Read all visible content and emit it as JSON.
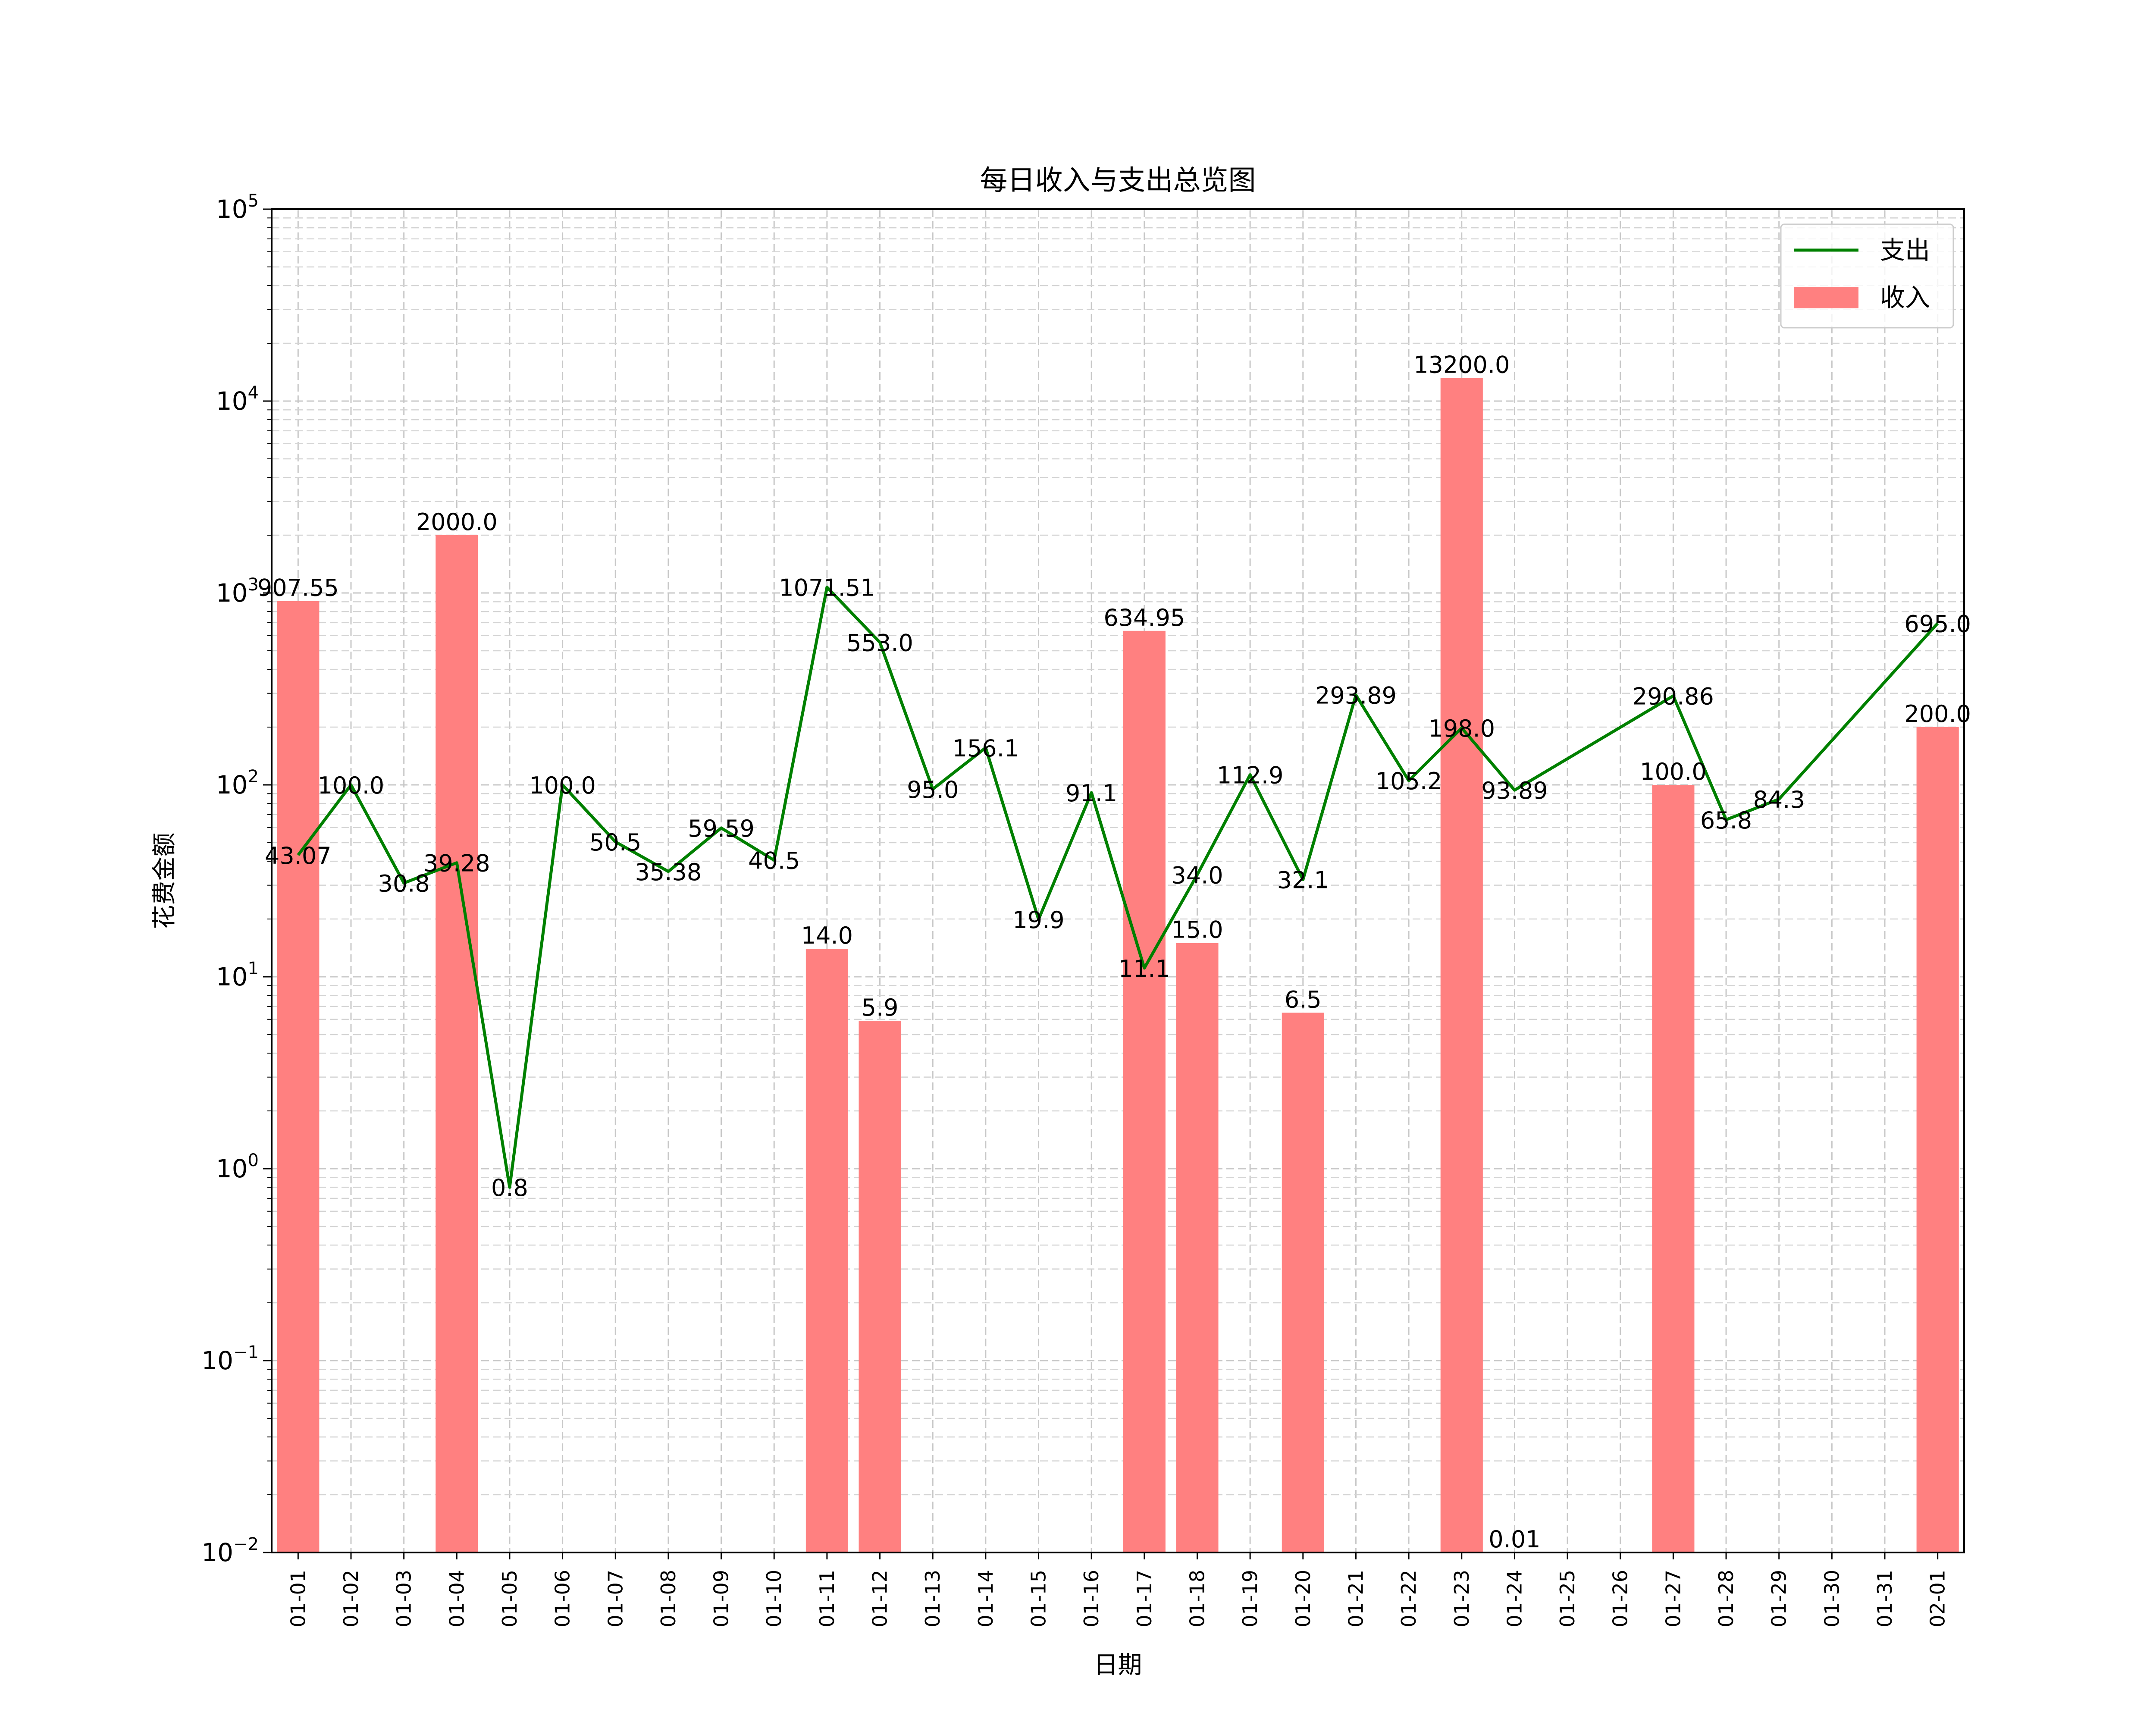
{
  "chart_data": {
    "type": "bar",
    "title": "每日收入与支出总览图",
    "xlabel": "日期",
    "ylabel": "花费金额",
    "yscale": "log",
    "ylim": [
      0.01,
      100000
    ],
    "grid": true,
    "legend_position": "top-right",
    "categories": [
      "01-01",
      "01-02",
      "01-03",
      "01-04",
      "01-05",
      "01-06",
      "01-07",
      "01-08",
      "01-09",
      "01-10",
      "01-11",
      "01-12",
      "01-13",
      "01-14",
      "01-15",
      "01-16",
      "01-17",
      "01-18",
      "01-19",
      "01-20",
      "01-21",
      "01-22",
      "01-23",
      "01-24",
      "01-25",
      "01-26",
      "01-27",
      "01-28",
      "01-29",
      "01-30",
      "01-31",
      "02-01"
    ],
    "y_ticks": [
      {
        "base": "10",
        "exp": "−2"
      },
      {
        "base": "10",
        "exp": "−1"
      },
      {
        "base": "10",
        "exp": "0"
      },
      {
        "base": "10",
        "exp": "1"
      },
      {
        "base": "10",
        "exp": "2"
      },
      {
        "base": "10",
        "exp": "3"
      },
      {
        "base": "10",
        "exp": "4"
      },
      {
        "base": "10",
        "exp": "5"
      }
    ],
    "series": [
      {
        "name": "支出",
        "kind": "line",
        "color": "#008000",
        "points": [
          {
            "x": "01-01",
            "y": 43.07,
            "label": "43.07"
          },
          {
            "x": "01-02",
            "y": 100.0,
            "label": "100.0"
          },
          {
            "x": "01-03",
            "y": 30.8,
            "label": "30.8"
          },
          {
            "x": "01-04",
            "y": 39.28,
            "label": "39.28"
          },
          {
            "x": "01-05",
            "y": 0.8,
            "label": "0.8"
          },
          {
            "x": "01-06",
            "y": 100.0,
            "label": "100.0"
          },
          {
            "x": "01-07",
            "y": 50.5,
            "label": "50.5"
          },
          {
            "x": "01-08",
            "y": 35.38,
            "label": "35.38"
          },
          {
            "x": "01-09",
            "y": 59.59,
            "label": "59.59"
          },
          {
            "x": "01-10",
            "y": 40.5,
            "label": "40.5"
          },
          {
            "x": "01-11",
            "y": 1071.51,
            "label": "1071.51"
          },
          {
            "x": "01-12",
            "y": 553.0,
            "label": "553.0"
          },
          {
            "x": "01-13",
            "y": 95.0,
            "label": "95.0"
          },
          {
            "x": "01-14",
            "y": 156.1,
            "label": "156.1"
          },
          {
            "x": "01-15",
            "y": 19.9,
            "label": "19.9"
          },
          {
            "x": "01-16",
            "y": 91.1,
            "label": "91.1"
          },
          {
            "x": "01-17",
            "y": 11.1,
            "label": "11.1"
          },
          {
            "x": "01-18",
            "y": 34.0,
            "label": "34.0"
          },
          {
            "x": "01-19",
            "y": 112.9,
            "label": "112.9"
          },
          {
            "x": "01-20",
            "y": 32.1,
            "label": "32.1"
          },
          {
            "x": "01-21",
            "y": 293.89,
            "label": "293.89"
          },
          {
            "x": "01-22",
            "y": 105.2,
            "label": "105.2"
          },
          {
            "x": "01-23",
            "y": 198.0,
            "label": "198.0"
          },
          {
            "x": "01-24",
            "y": 93.89,
            "label": "93.89"
          },
          {
            "x": "01-27",
            "y": 290.86,
            "label": "290.86"
          },
          {
            "x": "01-28",
            "y": 65.8,
            "label": "65.8"
          },
          {
            "x": "01-29",
            "y": 84.3,
            "label": "84.3"
          },
          {
            "x": "02-01",
            "y": 695.0,
            "label": "695.0"
          }
        ]
      },
      {
        "name": "收入",
        "kind": "bar",
        "color": "#ff8080",
        "points": [
          {
            "x": "01-01",
            "y": 907.55,
            "label": "907.55"
          },
          {
            "x": "01-04",
            "y": 2000.0,
            "label": "2000.0"
          },
          {
            "x": "01-11",
            "y": 14.0,
            "label": "14.0"
          },
          {
            "x": "01-12",
            "y": 5.9,
            "label": "5.9"
          },
          {
            "x": "01-17",
            "y": 634.95,
            "label": "634.95"
          },
          {
            "x": "01-18",
            "y": 15.0,
            "label": "15.0"
          },
          {
            "x": "01-20",
            "y": 6.5,
            "label": "6.5"
          },
          {
            "x": "01-23",
            "y": 13200.0,
            "label": "13200.0"
          },
          {
            "x": "01-24",
            "y": 0.01,
            "label": "0.01"
          },
          {
            "x": "01-27",
            "y": 100.0,
            "label": "100.0"
          },
          {
            "x": "02-01",
            "y": 200.0,
            "label": "200.0"
          }
        ]
      }
    ]
  }
}
